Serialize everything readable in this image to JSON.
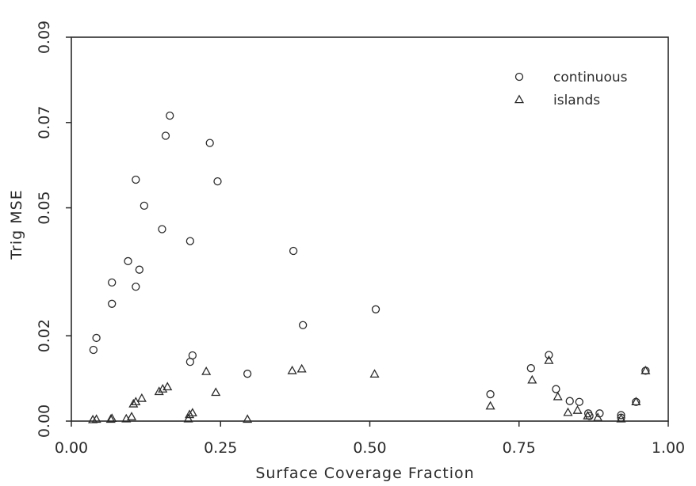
{
  "chart_data": {
    "type": "scatter",
    "title": "",
    "xlabel": "Surface Coverage Fraction",
    "ylabel": "Trig MSE",
    "xlim": [
      0.0,
      1.0
    ],
    "ylim": [
      0.0,
      0.09
    ],
    "xticks": [
      0.0,
      0.25,
      0.5,
      0.75,
      1.0
    ],
    "xtick_labels": [
      "0.00",
      "0.25",
      "0.50",
      "0.75",
      "1.00"
    ],
    "yticks": [
      0.0,
      0.02,
      0.05,
      0.07,
      0.09
    ],
    "ytick_labels": [
      "0.00",
      "0.02",
      "0.05",
      "0.07",
      "0.09"
    ],
    "grid": false,
    "legend": "top-right",
    "series": [
      {
        "name": "continuous",
        "marker": "circle",
        "points": [
          [
            0.037,
            0.0167
          ],
          [
            0.042,
            0.0195
          ],
          [
            0.068,
            0.0325
          ],
          [
            0.068,
            0.0275
          ],
          [
            0.095,
            0.0375
          ],
          [
            0.108,
            0.0566
          ],
          [
            0.108,
            0.0315
          ],
          [
            0.114,
            0.0355
          ],
          [
            0.122,
            0.0505
          ],
          [
            0.152,
            0.045
          ],
          [
            0.158,
            0.0669
          ],
          [
            0.165,
            0.0716
          ],
          [
            0.199,
            0.0422
          ],
          [
            0.199,
            0.0139
          ],
          [
            0.203,
            0.0154
          ],
          [
            0.232,
            0.0652
          ],
          [
            0.245,
            0.0562
          ],
          [
            0.295,
            0.0111
          ],
          [
            0.372,
            0.0399
          ],
          [
            0.388,
            0.0225
          ],
          [
            0.51,
            0.0262
          ],
          [
            0.702,
            0.0063
          ],
          [
            0.77,
            0.0124
          ],
          [
            0.8,
            0.0155
          ],
          [
            0.812,
            0.0075
          ],
          [
            0.835,
            0.0047
          ],
          [
            0.851,
            0.0045
          ],
          [
            0.866,
            0.0018
          ],
          [
            0.868,
            0.0012
          ],
          [
            0.885,
            0.0018
          ],
          [
            0.921,
            0.0014
          ],
          [
            0.921,
            0.0008
          ],
          [
            0.946,
            0.0045
          ],
          [
            0.962,
            0.0118
          ]
        ]
      },
      {
        "name": "islands",
        "marker": "triangle",
        "points": [
          [
            0.036,
            0.0003
          ],
          [
            0.042,
            0.0004
          ],
          [
            0.066,
            0.0004
          ],
          [
            0.068,
            0.0006
          ],
          [
            0.092,
            0.0005
          ],
          [
            0.101,
            0.001
          ],
          [
            0.104,
            0.004
          ],
          [
            0.108,
            0.0045
          ],
          [
            0.118,
            0.0053
          ],
          [
            0.147,
            0.0069
          ],
          [
            0.153,
            0.0075
          ],
          [
            0.161,
            0.008
          ],
          [
            0.196,
            0.0005
          ],
          [
            0.198,
            0.0015
          ],
          [
            0.203,
            0.0019
          ],
          [
            0.226,
            0.0116
          ],
          [
            0.242,
            0.0067
          ],
          [
            0.295,
            0.0004
          ],
          [
            0.37,
            0.0118
          ],
          [
            0.386,
            0.0122
          ],
          [
            0.508,
            0.011
          ],
          [
            0.702,
            0.0035
          ],
          [
            0.772,
            0.0096
          ],
          [
            0.8,
            0.0142
          ],
          [
            0.815,
            0.0057
          ],
          [
            0.832,
            0.002
          ],
          [
            0.848,
            0.0025
          ],
          [
            0.865,
            0.0012
          ],
          [
            0.882,
            0.0008
          ],
          [
            0.921,
            0.0005
          ],
          [
            0.946,
            0.0045
          ],
          [
            0.962,
            0.0118
          ]
        ]
      }
    ]
  },
  "colors": {
    "background": "#ffffff",
    "ink": "#2b2b2b"
  }
}
